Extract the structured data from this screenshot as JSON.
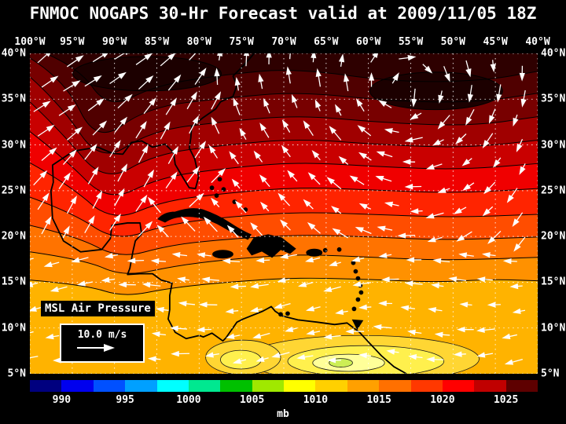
{
  "title": "FNMOC NOGAPS 30-Hr Forecast valid at 2009/11/05 18Z",
  "map": {
    "field_label": "MSL Air Pressure",
    "wind_legend": {
      "speed_label": "10.0 m/s"
    },
    "lon_labels": [
      "100°W",
      "95°W",
      "90°W",
      "85°W",
      "80°W",
      "75°W",
      "70°W",
      "65°W",
      "60°W",
      "55°W",
      "50°W",
      "45°W",
      "40°W"
    ],
    "lat_labels": [
      "40°N",
      "35°N",
      "30°N",
      "25°N",
      "20°N",
      "15°N",
      "10°N",
      "5°N"
    ]
  },
  "colorbar": {
    "unit": "mb",
    "tick_labels": [
      "990",
      "995",
      "1000",
      "1005",
      "1010",
      "1015",
      "1020",
      "1025"
    ],
    "segment_colors": [
      "#00007f",
      "#0000ee",
      "#0050ff",
      "#00a0ff",
      "#00ffff",
      "#00e890",
      "#00c000",
      "#a0e800",
      "#ffff00",
      "#ffd000",
      "#ffa000",
      "#ff7000",
      "#ff3800",
      "#ff0000",
      "#c00000",
      "#5e0000"
    ]
  },
  "pressure_shading": {
    "base": "#ffb300",
    "band_colors": [
      "#ff9100",
      "#ff7300",
      "#ff4d00",
      "#ff2400",
      "#f00000",
      "#c90000",
      "#a00000",
      "#780000",
      "#500000",
      "#2e0000"
    ],
    "low_patch_colors": [
      "#ffd633",
      "#fff04d",
      "#ffff99",
      "#cdee55"
    ],
    "high_core_color": "#1c0000"
  },
  "wind_color": "#ffffff",
  "background": "#000000",
  "grid_color": "#ffffff",
  "coast_color": "#000000"
}
